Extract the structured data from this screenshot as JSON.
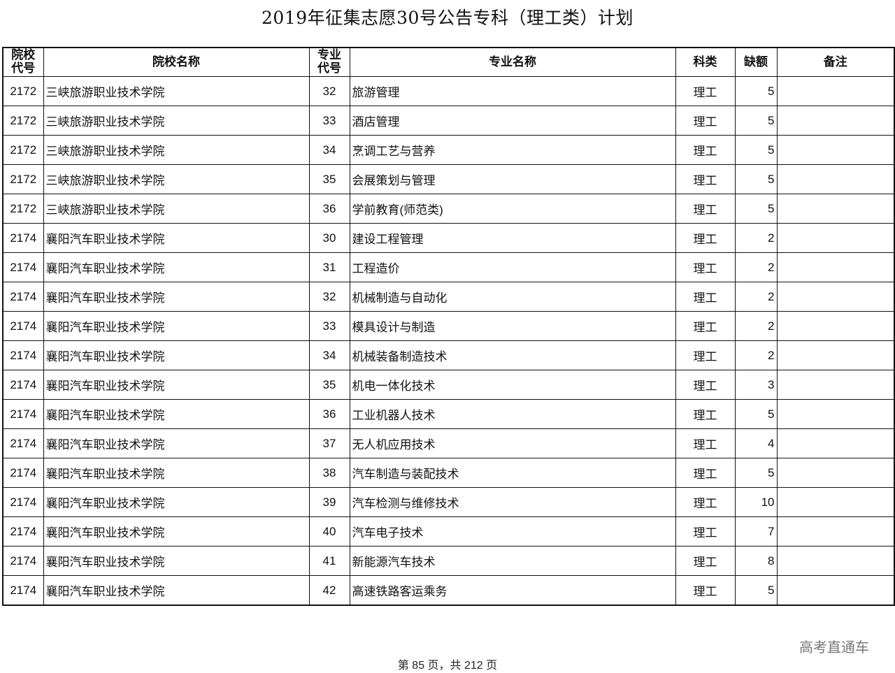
{
  "title": "2019年征集志愿30号公告专科（理工类）计划",
  "headers": {
    "school_code": "院校代号",
    "school_name": "院校名称",
    "major_code": "专业代号",
    "major_name": "专业名称",
    "category": "科类",
    "vacancy": "缺额",
    "remark": "备注"
  },
  "rows": [
    {
      "school_code": "2172",
      "school_name": "三峡旅游职业技术学院",
      "major_code": "32",
      "major_name": "旅游管理",
      "category": "理工",
      "vacancy": "5",
      "remark": ""
    },
    {
      "school_code": "2172",
      "school_name": "三峡旅游职业技术学院",
      "major_code": "33",
      "major_name": "酒店管理",
      "category": "理工",
      "vacancy": "5",
      "remark": ""
    },
    {
      "school_code": "2172",
      "school_name": "三峡旅游职业技术学院",
      "major_code": "34",
      "major_name": "烹调工艺与营养",
      "category": "理工",
      "vacancy": "5",
      "remark": ""
    },
    {
      "school_code": "2172",
      "school_name": "三峡旅游职业技术学院",
      "major_code": "35",
      "major_name": "会展策划与管理",
      "category": "理工",
      "vacancy": "5",
      "remark": ""
    },
    {
      "school_code": "2172",
      "school_name": "三峡旅游职业技术学院",
      "major_code": "36",
      "major_name": "学前教育(师范类)",
      "category": "理工",
      "vacancy": "5",
      "remark": ""
    },
    {
      "school_code": "2174",
      "school_name": "襄阳汽车职业技术学院",
      "major_code": "30",
      "major_name": "建设工程管理",
      "category": "理工",
      "vacancy": "2",
      "remark": ""
    },
    {
      "school_code": "2174",
      "school_name": "襄阳汽车职业技术学院",
      "major_code": "31",
      "major_name": "工程造价",
      "category": "理工",
      "vacancy": "2",
      "remark": ""
    },
    {
      "school_code": "2174",
      "school_name": "襄阳汽车职业技术学院",
      "major_code": "32",
      "major_name": "机械制造与自动化",
      "category": "理工",
      "vacancy": "2",
      "remark": ""
    },
    {
      "school_code": "2174",
      "school_name": "襄阳汽车职业技术学院",
      "major_code": "33",
      "major_name": "模具设计与制造",
      "category": "理工",
      "vacancy": "2",
      "remark": ""
    },
    {
      "school_code": "2174",
      "school_name": "襄阳汽车职业技术学院",
      "major_code": "34",
      "major_name": "机械装备制造技术",
      "category": "理工",
      "vacancy": "2",
      "remark": ""
    },
    {
      "school_code": "2174",
      "school_name": "襄阳汽车职业技术学院",
      "major_code": "35",
      "major_name": "机电一体化技术",
      "category": "理工",
      "vacancy": "3",
      "remark": ""
    },
    {
      "school_code": "2174",
      "school_name": "襄阳汽车职业技术学院",
      "major_code": "36",
      "major_name": "工业机器人技术",
      "category": "理工",
      "vacancy": "5",
      "remark": ""
    },
    {
      "school_code": "2174",
      "school_name": "襄阳汽车职业技术学院",
      "major_code": "37",
      "major_name": "无人机应用技术",
      "category": "理工",
      "vacancy": "4",
      "remark": ""
    },
    {
      "school_code": "2174",
      "school_name": "襄阳汽车职业技术学院",
      "major_code": "38",
      "major_name": "汽车制造与装配技术",
      "category": "理工",
      "vacancy": "5",
      "remark": ""
    },
    {
      "school_code": "2174",
      "school_name": "襄阳汽车职业技术学院",
      "major_code": "39",
      "major_name": "汽车检测与维修技术",
      "category": "理工",
      "vacancy": "10",
      "remark": ""
    },
    {
      "school_code": "2174",
      "school_name": "襄阳汽车职业技术学院",
      "major_code": "40",
      "major_name": "汽车电子技术",
      "category": "理工",
      "vacancy": "7",
      "remark": ""
    },
    {
      "school_code": "2174",
      "school_name": "襄阳汽车职业技术学院",
      "major_code": "41",
      "major_name": "新能源汽车技术",
      "category": "理工",
      "vacancy": "8",
      "remark": ""
    },
    {
      "school_code": "2174",
      "school_name": "襄阳汽车职业技术学院",
      "major_code": "42",
      "major_name": "高速铁路客运乘务",
      "category": "理工",
      "vacancy": "5",
      "remark": ""
    }
  ],
  "watermark": "高考直通车",
  "footer": "第 85 页，共 212 页"
}
